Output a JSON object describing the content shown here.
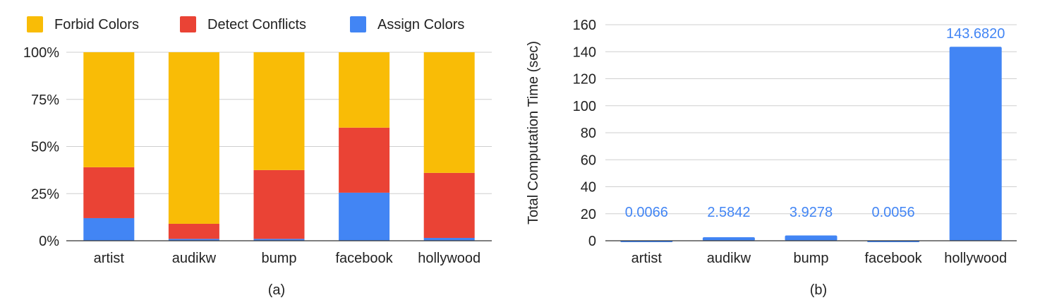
{
  "colors": {
    "forbid": "#f9bc06",
    "detect": "#ea4335",
    "assign": "#4285f4",
    "label": "#4285f4"
  },
  "chart_data": [
    {
      "type": "bar",
      "stacked": true,
      "normalized": true,
      "caption": "(a)",
      "legend_position": "top",
      "categories": [
        "artist",
        "audikw",
        "bump",
        "facebook",
        "hollywood"
      ],
      "ylim": [
        0,
        100
      ],
      "yticks": [
        "0%",
        "25%",
        "50%",
        "75%",
        "100%"
      ],
      "series": [
        {
          "name": "Assign Colors",
          "color_key": "assign",
          "values": [
            12,
            1,
            1,
            25.5,
            1.5
          ]
        },
        {
          "name": "Detect Conflicts",
          "color_key": "detect",
          "values": [
            27,
            8,
            36.5,
            34.5,
            34.5
          ]
        },
        {
          "name": "Forbid Colors",
          "color_key": "forbid",
          "values": [
            61,
            91,
            62.5,
            40,
            64
          ]
        }
      ],
      "legend_order": [
        "Forbid Colors",
        "Detect Conflicts",
        "Assign Colors"
      ]
    },
    {
      "type": "bar",
      "caption": "(b)",
      "ylabel": "Total Computation Time (sec)",
      "categories": [
        "artist",
        "audikw",
        "bump",
        "facebook",
        "hollywood"
      ],
      "values": [
        0.0066,
        2.5842,
        3.9278,
        0.0056,
        143.682
      ],
      "data_labels": [
        "0.0066",
        "2.5842",
        "3.9278",
        "0.0056",
        "143.6820"
      ],
      "ylim": [
        0,
        160
      ],
      "yticks": [
        "0",
        "20",
        "40",
        "60",
        "80",
        "100",
        "120",
        "140",
        "160"
      ]
    }
  ]
}
